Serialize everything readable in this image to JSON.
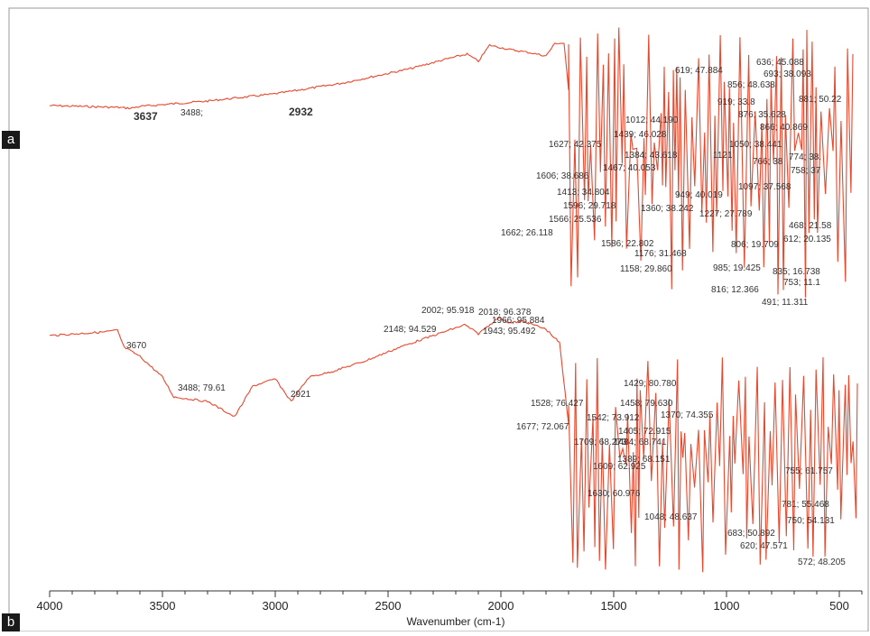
{
  "chart_data": [
    {
      "type": "line",
      "panel": "a",
      "color": "#e8482d",
      "xlim": [
        4000,
        400
      ],
      "x_reversed": true,
      "peak_labels": [
        {
          "x": 3637,
          "text": "3637"
        },
        {
          "x": 3488,
          "text": "3488;"
        },
        {
          "x": 2932,
          "text": "2932"
        },
        {
          "x": 1662,
          "text": "1662; 26.118"
        },
        {
          "x": 1627,
          "text": "1627; 42.375"
        },
        {
          "x": 1606,
          "text": "1606; 38.686"
        },
        {
          "x": 1596,
          "text": "1596; 29.718"
        },
        {
          "x": 1586,
          "text": "1586; 22.802"
        },
        {
          "x": 1566,
          "text": "1566; 25.536"
        },
        {
          "x": 1467,
          "text": "1467; 40.053"
        },
        {
          "x": 1439,
          "text": "1439; 46.028"
        },
        {
          "x": 1413,
          "text": "1413; 34.804"
        },
        {
          "x": 1384,
          "text": "1384; 43.618"
        },
        {
          "x": 1360,
          "text": "1360; 38.242"
        },
        {
          "x": 1227,
          "text": "1227; 27.789"
        },
        {
          "x": 1176,
          "text": "1176; 31.468"
        },
        {
          "x": 1158,
          "text": "1158; 29.860"
        },
        {
          "x": 1121,
          "text": "1121"
        },
        {
          "x": 1097,
          "text": "1097; 37.568"
        },
        {
          "x": 1050,
          "text": "1050; 38.441"
        },
        {
          "x": 1012,
          "text": "1012; 44.190"
        },
        {
          "x": 985,
          "text": "985; 19.425"
        },
        {
          "x": 949,
          "text": "949; 40.019"
        },
        {
          "x": 919,
          "text": "919; 33.8"
        },
        {
          "x": 881,
          "text": "881; 50.22"
        },
        {
          "x": 876,
          "text": "876; 35.628"
        },
        {
          "x": 866,
          "text": "866; 40.869"
        },
        {
          "x": 856,
          "text": "856; 48.638"
        },
        {
          "x": 835,
          "text": "835; 16.738"
        },
        {
          "x": 816,
          "text": "816; 12.366"
        },
        {
          "x": 806,
          "text": "806; 19.709"
        },
        {
          "x": 774,
          "text": "774; 38."
        },
        {
          "x": 766,
          "text": "766; 38"
        },
        {
          "x": 758,
          "text": "758; 37"
        },
        {
          "x": 753,
          "text": "753; 11.1"
        },
        {
          "x": 693,
          "text": "693; 38.093"
        },
        {
          "x": 636,
          "text": "636; 45.088"
        },
        {
          "x": 619,
          "text": "619; 47.884"
        },
        {
          "x": 612,
          "text": "612; 20.135"
        },
        {
          "x": 491,
          "text": "491; 11.311"
        },
        {
          "x": 468,
          "text": "468; 21.58"
        }
      ]
    },
    {
      "type": "line",
      "panel": "b",
      "color": "#e8482d",
      "xlim": [
        4000,
        400
      ],
      "x_reversed": true,
      "xlabel": "Wavenumber (cm-1)",
      "xticks": [
        4000,
        3500,
        3000,
        2500,
        2000,
        1500,
        1000,
        500
      ],
      "peak_labels": [
        {
          "x": 3670,
          "text": "3670"
        },
        {
          "x": 3488,
          "text": "3488; 79.61"
        },
        {
          "x": 2921,
          "text": "2921"
        },
        {
          "x": 2148,
          "text": "2148; 94.529"
        },
        {
          "x": 2018,
          "text": "2018; 96.378"
        },
        {
          "x": 2002,
          "text": "2002; 95.918"
        },
        {
          "x": 1966,
          "text": "1966; 95.884"
        },
        {
          "x": 1943,
          "text": "1943; 95.492"
        },
        {
          "x": 1709,
          "text": "1709; 68.273"
        },
        {
          "x": 1677,
          "text": "1677; 72.067"
        },
        {
          "x": 1630,
          "text": "1630; 60.976"
        },
        {
          "x": 1609,
          "text": "1609; 62.925"
        },
        {
          "x": 1542,
          "text": "1542; 73.912"
        },
        {
          "x": 1528,
          "text": "1528; 76.427"
        },
        {
          "x": 1484,
          "text": "1484; 68.741"
        },
        {
          "x": 1458,
          "text": "1458; 79.630"
        },
        {
          "x": 1429,
          "text": "1429; 80.780"
        },
        {
          "x": 1405,
          "text": "1405; 72.915"
        },
        {
          "x": 1389,
          "text": "1389; 68.151"
        },
        {
          "x": 1370,
          "text": "1370; 74.355"
        },
        {
          "x": 1048,
          "text": "1048; 48.637"
        },
        {
          "x": 781,
          "text": "781; 55.468"
        },
        {
          "x": 755,
          "text": "755; 61.757"
        },
        {
          "x": 750,
          "text": "750; 54.131"
        },
        {
          "x": 683,
          "text": "683; 50.892"
        },
        {
          "x": 620,
          "text": "620; 47.571"
        },
        {
          "x": 572,
          "text": "572; 48.205"
        }
      ]
    }
  ],
  "panel_labels": {
    "a": "a",
    "b": "b"
  }
}
